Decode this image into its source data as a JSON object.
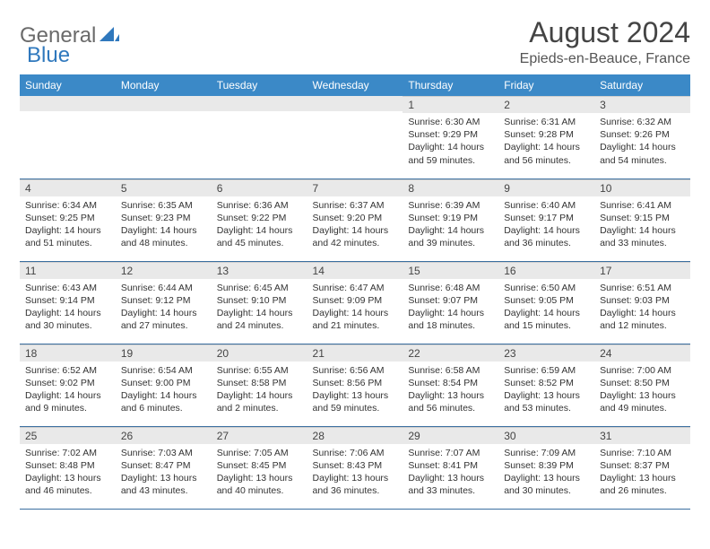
{
  "brand": {
    "word1": "General",
    "word2": "Blue"
  },
  "title": "August 2024",
  "location": "Epieds-en-Beauce, France",
  "colors": {
    "header_bg": "#3b89c7",
    "header_text": "#ffffff",
    "daynum_bg": "#e9e9e9",
    "row_border": "#3b6fa0",
    "brand_gray": "#6a6a6a",
    "brand_blue": "#2f78bd"
  },
  "dayNames": [
    "Sunday",
    "Monday",
    "Tuesday",
    "Wednesday",
    "Thursday",
    "Friday",
    "Saturday"
  ],
  "weeks": [
    [
      null,
      null,
      null,
      null,
      {
        "n": "1",
        "sr": "6:30 AM",
        "ss": "9:29 PM",
        "dl": "14 hours and 59 minutes."
      },
      {
        "n": "2",
        "sr": "6:31 AM",
        "ss": "9:28 PM",
        "dl": "14 hours and 56 minutes."
      },
      {
        "n": "3",
        "sr": "6:32 AM",
        "ss": "9:26 PM",
        "dl": "14 hours and 54 minutes."
      }
    ],
    [
      {
        "n": "4",
        "sr": "6:34 AM",
        "ss": "9:25 PM",
        "dl": "14 hours and 51 minutes."
      },
      {
        "n": "5",
        "sr": "6:35 AM",
        "ss": "9:23 PM",
        "dl": "14 hours and 48 minutes."
      },
      {
        "n": "6",
        "sr": "6:36 AM",
        "ss": "9:22 PM",
        "dl": "14 hours and 45 minutes."
      },
      {
        "n": "7",
        "sr": "6:37 AM",
        "ss": "9:20 PM",
        "dl": "14 hours and 42 minutes."
      },
      {
        "n": "8",
        "sr": "6:39 AM",
        "ss": "9:19 PM",
        "dl": "14 hours and 39 minutes."
      },
      {
        "n": "9",
        "sr": "6:40 AM",
        "ss": "9:17 PM",
        "dl": "14 hours and 36 minutes."
      },
      {
        "n": "10",
        "sr": "6:41 AM",
        "ss": "9:15 PM",
        "dl": "14 hours and 33 minutes."
      }
    ],
    [
      {
        "n": "11",
        "sr": "6:43 AM",
        "ss": "9:14 PM",
        "dl": "14 hours and 30 minutes."
      },
      {
        "n": "12",
        "sr": "6:44 AM",
        "ss": "9:12 PM",
        "dl": "14 hours and 27 minutes."
      },
      {
        "n": "13",
        "sr": "6:45 AM",
        "ss": "9:10 PM",
        "dl": "14 hours and 24 minutes."
      },
      {
        "n": "14",
        "sr": "6:47 AM",
        "ss": "9:09 PM",
        "dl": "14 hours and 21 minutes."
      },
      {
        "n": "15",
        "sr": "6:48 AM",
        "ss": "9:07 PM",
        "dl": "14 hours and 18 minutes."
      },
      {
        "n": "16",
        "sr": "6:50 AM",
        "ss": "9:05 PM",
        "dl": "14 hours and 15 minutes."
      },
      {
        "n": "17",
        "sr": "6:51 AM",
        "ss": "9:03 PM",
        "dl": "14 hours and 12 minutes."
      }
    ],
    [
      {
        "n": "18",
        "sr": "6:52 AM",
        "ss": "9:02 PM",
        "dl": "14 hours and 9 minutes."
      },
      {
        "n": "19",
        "sr": "6:54 AM",
        "ss": "9:00 PM",
        "dl": "14 hours and 6 minutes."
      },
      {
        "n": "20",
        "sr": "6:55 AM",
        "ss": "8:58 PM",
        "dl": "14 hours and 2 minutes."
      },
      {
        "n": "21",
        "sr": "6:56 AM",
        "ss": "8:56 PM",
        "dl": "13 hours and 59 minutes."
      },
      {
        "n": "22",
        "sr": "6:58 AM",
        "ss": "8:54 PM",
        "dl": "13 hours and 56 minutes."
      },
      {
        "n": "23",
        "sr": "6:59 AM",
        "ss": "8:52 PM",
        "dl": "13 hours and 53 minutes."
      },
      {
        "n": "24",
        "sr": "7:00 AM",
        "ss": "8:50 PM",
        "dl": "13 hours and 49 minutes."
      }
    ],
    [
      {
        "n": "25",
        "sr": "7:02 AM",
        "ss": "8:48 PM",
        "dl": "13 hours and 46 minutes."
      },
      {
        "n": "26",
        "sr": "7:03 AM",
        "ss": "8:47 PM",
        "dl": "13 hours and 43 minutes."
      },
      {
        "n": "27",
        "sr": "7:05 AM",
        "ss": "8:45 PM",
        "dl": "13 hours and 40 minutes."
      },
      {
        "n": "28",
        "sr": "7:06 AM",
        "ss": "8:43 PM",
        "dl": "13 hours and 36 minutes."
      },
      {
        "n": "29",
        "sr": "7:07 AM",
        "ss": "8:41 PM",
        "dl": "13 hours and 33 minutes."
      },
      {
        "n": "30",
        "sr": "7:09 AM",
        "ss": "8:39 PM",
        "dl": "13 hours and 30 minutes."
      },
      {
        "n": "31",
        "sr": "7:10 AM",
        "ss": "8:37 PM",
        "dl": "13 hours and 26 minutes."
      }
    ]
  ],
  "labels": {
    "sunrise": "Sunrise:",
    "sunset": "Sunset:",
    "daylight": "Daylight:"
  }
}
